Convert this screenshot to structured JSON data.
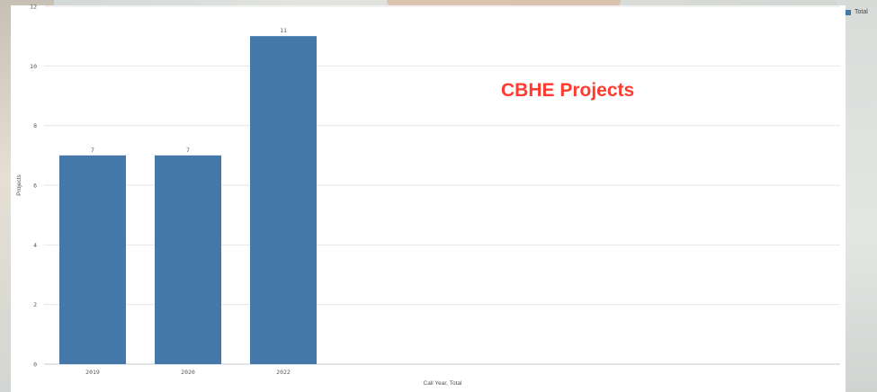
{
  "chart_data": {
    "type": "bar",
    "title": "CBHE Projects",
    "categories": [
      "2019",
      "2020",
      "2022"
    ],
    "series": [
      {
        "name": "Total",
        "values": [
          7,
          7,
          11
        ]
      }
    ],
    "data_labels": [
      "7",
      "7",
      "11"
    ],
    "xlabel": "Call Year, Total",
    "ylabel": "Projects",
    "ylim": [
      0,
      12
    ],
    "yticks": [
      "0",
      "2",
      "4",
      "6",
      "8",
      "10",
      "12"
    ],
    "grid": true,
    "legend_position": "top-right",
    "colors": {
      "bar": "#4477aa",
      "title": "#ff3b2f",
      "grid": "#e6e6e6"
    }
  },
  "legend": {
    "items": [
      {
        "label": "Total",
        "color": "#4477aa"
      }
    ]
  }
}
